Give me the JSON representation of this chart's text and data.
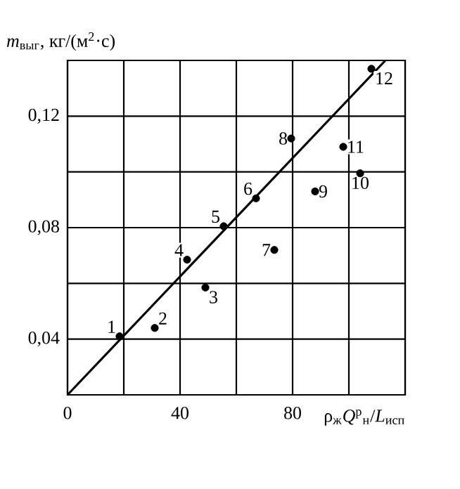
{
  "chart_data": {
    "type": "scatter",
    "xlabel": "ρ$_{ж}$*Q*$^{р}$$_{н}$/*L*$_{исп}$",
    "ylabel": "*m*$_{выг}$, кг/(м$^{2}$·с)",
    "xlim": [
      0,
      120
    ],
    "ylim": [
      0.02,
      0.14
    ],
    "xticks": [
      0,
      {
        "value": 20,
        "label": null
      },
      40,
      {
        "value": 60,
        "label": null
      },
      80,
      {
        "value": 100,
        "label": null
      },
      {
        "value": 120,
        "label": null
      }
    ],
    "yticks": [
      {
        "value": 0.02,
        "label": null
      },
      {
        "value": 0.04,
        "label": "0,04"
      },
      {
        "value": 0.06,
        "label": null
      },
      {
        "value": 0.08,
        "label": "0,08"
      },
      {
        "value": 0.1,
        "label": null
      },
      {
        "value": 0.12,
        "label": "0,12"
      },
      {
        "value": 0.14,
        "label": null
      }
    ],
    "grid": true,
    "x": [
      18.5,
      31,
      49,
      42.5,
      55.5,
      67,
      73.5,
      79.5,
      88,
      104,
      98,
      108
    ],
    "series": [
      {
        "color": "#000000",
        "marker": "circle",
        "values": [
          0.041,
          0.044,
          0.0585,
          0.0685,
          0.0805,
          0.0905,
          0.072,
          0.112,
          0.093,
          0.0995,
          0.109,
          0.137
        ]
      },
      {
        "type": "line",
        "color": "#000000",
        "marker": "none",
        "line_style": "solid",
        "x": [
          0,
          113
        ],
        "values": [
          0.02,
          0.14
        ]
      }
    ],
    "annotations": [
      {
        "text": "1",
        "x": 18.5,
        "y": 0.041
      },
      {
        "text": "2",
        "x": 31,
        "y": 0.044
      },
      {
        "text": "3",
        "x": 49,
        "y": 0.0585
      },
      {
        "text": "4",
        "x": 42.5,
        "y": 0.0685
      },
      {
        "text": "5",
        "x": 55.5,
        "y": 0.0805
      },
      {
        "text": "6",
        "x": 67,
        "y": 0.0905
      },
      {
        "text": "7",
        "x": 73.5,
        "y": 0.072
      },
      {
        "text": "8",
        "x": 79.5,
        "y": 0.112
      },
      {
        "text": "9",
        "x": 88,
        "y": 0.093
      },
      {
        "text": "10",
        "x": 104,
        "y": 0.0995
      },
      {
        "text": "11",
        "x": 98,
        "y": 0.109
      },
      {
        "text": "12",
        "x": 108,
        "y": 0.137
      }
    ]
  }
}
